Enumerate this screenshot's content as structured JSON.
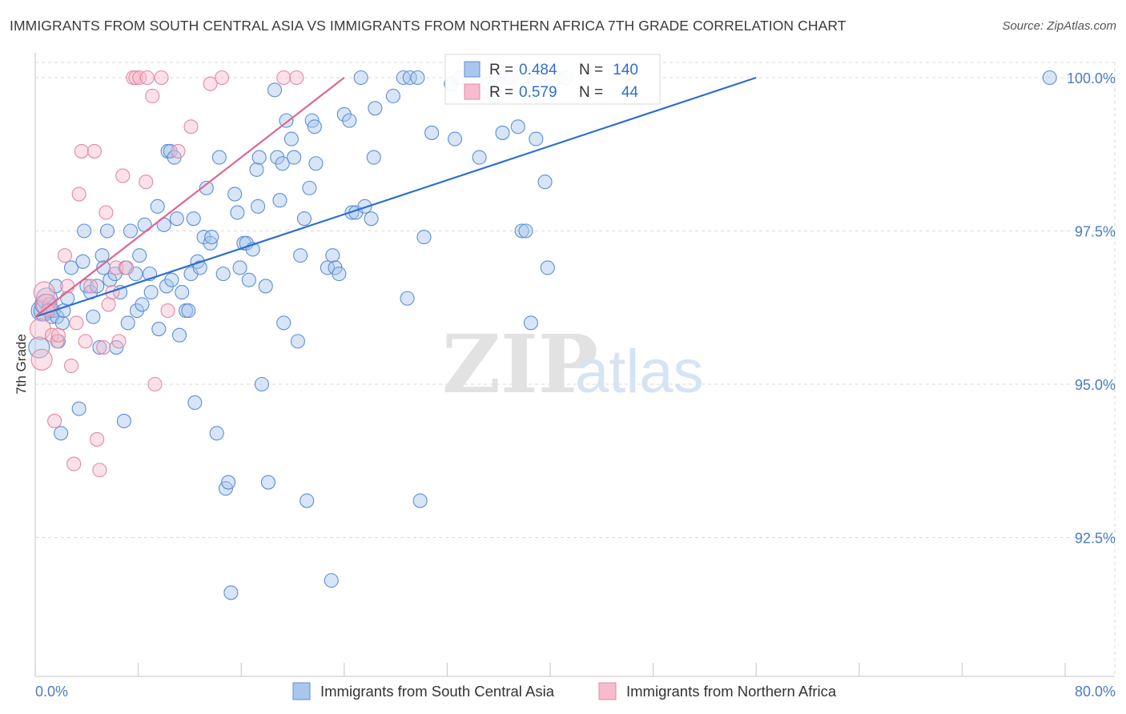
{
  "title": "IMMIGRANTS FROM SOUTH CENTRAL ASIA VS IMMIGRANTS FROM NORTHERN AFRICA 7TH GRADE CORRELATION CHART",
  "source": "Source: ZipAtlas.com",
  "watermark": {
    "zip": "ZIP",
    "atlas": "atlas"
  },
  "colors": {
    "blue_fill": "#a9c6ec",
    "blue_stroke": "#5b8fd6",
    "blue_line": "#2f6fcf",
    "pink_fill": "#f6bccd",
    "pink_stroke": "#e389a6",
    "pink_line": "#e06590",
    "value_text": "#2f6fcf",
    "grid": "#dadada"
  },
  "chart_data": {
    "type": "scatter",
    "title": "IMMIGRANTS FROM SOUTH CENTRAL ASIA VS IMMIGRANTS FROM NORTHERN AFRICA 7TH GRADE CORRELATION CHART",
    "xlabel": "",
    "ylabel": "7th Grade",
    "xlim": [
      0,
      80
    ],
    "ylim": [
      90.5,
      100.5
    ],
    "x_tick_labels": {
      "min": "0.0%",
      "max": "80.0%"
    },
    "y_ticks": [
      {
        "value": 100.0,
        "label": "100.0%"
      },
      {
        "value": 97.5,
        "label": "97.5%"
      },
      {
        "value": 95.0,
        "label": "95.0%"
      },
      {
        "value": 92.5,
        "label": "92.5%"
      }
    ],
    "legend_stats": [
      {
        "r_label": "R =",
        "r": "0.484",
        "n_label": "N =",
        "n": "140"
      },
      {
        "r_label": "R =",
        "r": "0.579",
        "n_label": "N =",
        "n": "44"
      }
    ],
    "series": [
      {
        "name": "Immigrants from South Central Asia",
        "color": "blue",
        "trend": {
          "x": [
            0,
            56
          ],
          "y": [
            96.1,
            100.0
          ]
        },
        "points": [
          [
            0.3,
            95.6
          ],
          [
            0.5,
            96.2
          ],
          [
            0.7,
            96.2
          ],
          [
            0.8,
            96.3
          ],
          [
            0.9,
            96.4
          ],
          [
            1.1,
            96.3
          ],
          [
            1.2,
            96.2
          ],
          [
            1.3,
            96.1
          ],
          [
            1.4,
            96.2
          ],
          [
            1.6,
            96.6
          ],
          [
            1.7,
            96.1
          ],
          [
            1.8,
            95.7
          ],
          [
            2.1,
            96.0
          ],
          [
            2.2,
            96.2
          ],
          [
            2.5,
            96.4
          ],
          [
            2.8,
            96.9
          ],
          [
            2.0,
            94.2
          ],
          [
            3.4,
            94.6
          ],
          [
            3.7,
            97.0
          ],
          [
            4.0,
            96.6
          ],
          [
            3.8,
            97.5
          ],
          [
            4.3,
            96.5
          ],
          [
            4.5,
            96.1
          ],
          [
            4.8,
            96.6
          ],
          [
            5.0,
            95.6
          ],
          [
            5.2,
            97.1
          ],
          [
            5.3,
            96.9
          ],
          [
            5.6,
            97.5
          ],
          [
            5.8,
            96.7
          ],
          [
            6.2,
            96.8
          ],
          [
            6.3,
            95.6
          ],
          [
            6.6,
            96.5
          ],
          [
            6.9,
            94.4
          ],
          [
            7.0,
            96.9
          ],
          [
            7.2,
            96.0
          ],
          [
            7.4,
            97.5
          ],
          [
            7.8,
            96.8
          ],
          [
            7.9,
            96.2
          ],
          [
            8.1,
            97.1
          ],
          [
            8.3,
            96.3
          ],
          [
            8.5,
            97.6
          ],
          [
            8.9,
            96.8
          ],
          [
            9.0,
            96.5
          ],
          [
            9.5,
            97.9
          ],
          [
            9.6,
            95.9
          ],
          [
            10.0,
            97.6
          ],
          [
            10.2,
            96.6
          ],
          [
            10.3,
            98.8
          ],
          [
            10.5,
            98.8
          ],
          [
            10.6,
            96.7
          ],
          [
            10.8,
            98.7
          ],
          [
            11.0,
            97.7
          ],
          [
            11.2,
            95.8
          ],
          [
            11.4,
            96.5
          ],
          [
            11.7,
            96.2
          ],
          [
            11.9,
            96.2
          ],
          [
            12.1,
            96.8
          ],
          [
            12.3,
            97.7
          ],
          [
            12.4,
            94.7
          ],
          [
            12.6,
            97.0
          ],
          [
            12.8,
            96.9
          ],
          [
            13.3,
            98.2
          ],
          [
            13.1,
            97.4
          ],
          [
            13.6,
            97.3
          ],
          [
            13.7,
            97.4
          ],
          [
            14.1,
            94.2
          ],
          [
            14.3,
            98.7
          ],
          [
            14.6,
            96.8
          ],
          [
            14.8,
            93.3
          ],
          [
            15.0,
            93.4
          ],
          [
            15.2,
            91.6
          ],
          [
            15.5,
            98.1
          ],
          [
            15.7,
            97.8
          ],
          [
            15.9,
            96.9
          ],
          [
            16.2,
            97.3
          ],
          [
            16.4,
            97.3
          ],
          [
            16.6,
            96.7
          ],
          [
            16.9,
            97.2
          ],
          [
            17.2,
            98.5
          ],
          [
            17.3,
            97.9
          ],
          [
            17.4,
            98.7
          ],
          [
            17.6,
            95.0
          ],
          [
            17.9,
            96.6
          ],
          [
            18.1,
            93.4
          ],
          [
            18.6,
            99.8
          ],
          [
            18.8,
            98.7
          ],
          [
            19.0,
            98.0
          ],
          [
            19.2,
            98.6
          ],
          [
            19.3,
            96.0
          ],
          [
            19.5,
            99.3
          ],
          [
            19.9,
            99.0
          ],
          [
            20.1,
            98.7
          ],
          [
            20.4,
            95.7
          ],
          [
            20.6,
            97.1
          ],
          [
            20.9,
            97.7
          ],
          [
            21.1,
            93.1
          ],
          [
            21.3,
            98.2
          ],
          [
            21.5,
            99.3
          ],
          [
            21.7,
            99.2
          ],
          [
            21.8,
            98.6
          ],
          [
            22.7,
            96.9
          ],
          [
            23.1,
            97.1
          ],
          [
            23.3,
            96.9
          ],
          [
            23.6,
            96.8
          ],
          [
            24.0,
            99.4
          ],
          [
            24.4,
            99.3
          ],
          [
            24.6,
            97.8
          ],
          [
            24.9,
            97.8
          ],
          [
            25.3,
            100.0
          ],
          [
            25.6,
            97.9
          ],
          [
            26.1,
            97.7
          ],
          [
            26.3,
            98.7
          ],
          [
            26.4,
            99.5
          ],
          [
            27.8,
            99.7
          ],
          [
            28.6,
            100.0
          ],
          [
            28.9,
            96.4
          ],
          [
            29.1,
            100.0
          ],
          [
            29.7,
            100.0
          ],
          [
            29.9,
            93.1
          ],
          [
            30.2,
            97.4
          ],
          [
            30.8,
            99.1
          ],
          [
            32.3,
            99.9
          ],
          [
            32.6,
            99.0
          ],
          [
            33.0,
            100.0
          ],
          [
            34.5,
            98.7
          ],
          [
            35.2,
            99.9
          ],
          [
            35.6,
            99.7
          ],
          [
            36.3,
            99.1
          ],
          [
            36.7,
            100.0
          ],
          [
            37.0,
            100.0
          ],
          [
            37.5,
            99.2
          ],
          [
            37.8,
            97.5
          ],
          [
            38.1,
            97.5
          ],
          [
            38.5,
            96.0
          ],
          [
            38.9,
            99.0
          ],
          [
            39.6,
            98.3
          ],
          [
            39.8,
            96.9
          ],
          [
            41.2,
            100.0
          ],
          [
            78.8,
            100.0
          ],
          [
            23.0,
            91.8
          ]
        ]
      },
      {
        "name": "Immigrants from Northern Africa",
        "color": "pink",
        "trend": {
          "x": [
            0,
            24
          ],
          "y": [
            96.1,
            100.0
          ]
        },
        "points": [
          [
            0.4,
            95.9
          ],
          [
            0.5,
            95.4
          ],
          [
            0.7,
            96.5
          ],
          [
            0.9,
            96.3
          ],
          [
            1.0,
            96.2
          ],
          [
            1.3,
            95.8
          ],
          [
            1.5,
            94.4
          ],
          [
            1.7,
            95.7
          ],
          [
            1.8,
            95.8
          ],
          [
            2.3,
            97.1
          ],
          [
            2.5,
            96.6
          ],
          [
            2.8,
            95.3
          ],
          [
            3.0,
            93.7
          ],
          [
            3.2,
            96.0
          ],
          [
            3.4,
            98.1
          ],
          [
            3.6,
            98.8
          ],
          [
            3.9,
            95.7
          ],
          [
            4.3,
            96.6
          ],
          [
            4.6,
            98.8
          ],
          [
            4.8,
            94.1
          ],
          [
            5.0,
            93.6
          ],
          [
            5.3,
            95.6
          ],
          [
            5.5,
            97.8
          ],
          [
            5.7,
            96.3
          ],
          [
            6.0,
            96.5
          ],
          [
            6.3,
            96.9
          ],
          [
            6.5,
            95.7
          ],
          [
            6.8,
            98.4
          ],
          [
            7.1,
            96.9
          ],
          [
            7.6,
            100.0
          ],
          [
            7.8,
            100.0
          ],
          [
            8.1,
            100.0
          ],
          [
            8.6,
            98.3
          ],
          [
            8.7,
            100.0
          ],
          [
            9.1,
            99.7
          ],
          [
            9.3,
            95.0
          ],
          [
            9.8,
            100.0
          ],
          [
            10.3,
            96.2
          ],
          [
            11.1,
            98.8
          ],
          [
            12.1,
            99.2
          ],
          [
            13.6,
            99.9
          ],
          [
            14.5,
            100.0
          ],
          [
            19.3,
            100.0
          ],
          [
            20.3,
            100.0
          ]
        ]
      }
    ]
  }
}
